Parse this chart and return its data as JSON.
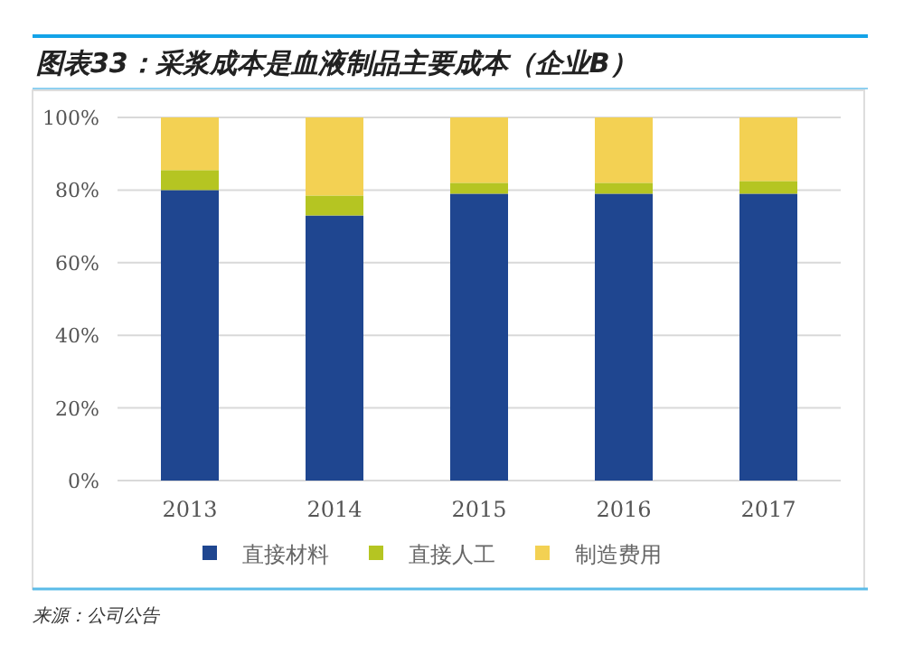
{
  "chart_data": {
    "type": "bar",
    "title": "图表33：采浆成本是血液制品主要成本（企业B）",
    "categories": [
      "2013",
      "2014",
      "2015",
      "2016",
      "2017"
    ],
    "stacked": true,
    "series": [
      {
        "name": "直接材料",
        "color": "#1f4690",
        "values": [
          80,
          73,
          79,
          79,
          79
        ]
      },
      {
        "name": "直接人工",
        "color": "#b5c522",
        "values": [
          5.5,
          5.5,
          3,
          3,
          3.5
        ]
      },
      {
        "name": "制造费用",
        "color": "#f3d153",
        "values": [
          14.5,
          21.5,
          18,
          18,
          17.5
        ]
      }
    ],
    "ylim": [
      0,
      100
    ],
    "yticks": [
      {
        "value": 0,
        "label": "0%"
      },
      {
        "value": 20,
        "label": "20%"
      },
      {
        "value": 40,
        "label": "40%"
      },
      {
        "value": 60,
        "label": "60%"
      },
      {
        "value": 80,
        "label": "80%"
      },
      {
        "value": 100,
        "label": "100%"
      }
    ],
    "grid": "y",
    "legend": "bottom",
    "annotations": [
      "来源：公司公告"
    ]
  }
}
